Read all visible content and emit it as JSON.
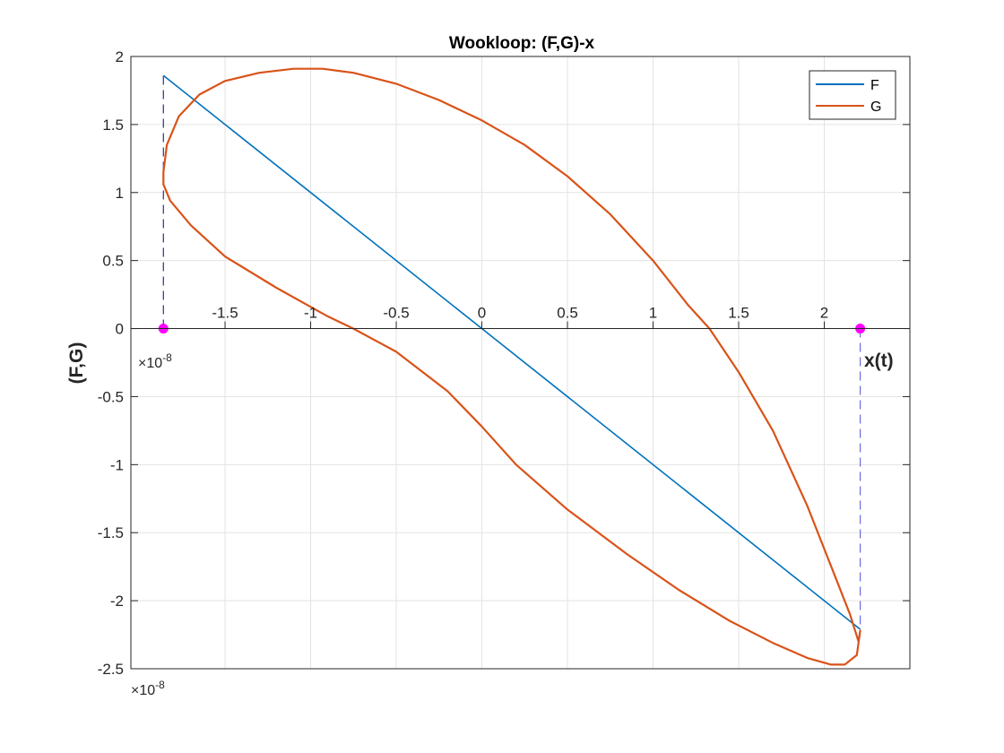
{
  "chart_data": {
    "type": "line",
    "title": "Wookloop: (F,G)-x",
    "xlabel": "x(t)",
    "ylabel": "(F,G)",
    "x_exponent_label": "×10",
    "x_exponent_power": "-8",
    "y_exponent_label": "×10",
    "y_exponent_power": "-8",
    "xlim": [
      -2.05,
      2.5
    ],
    "ylim": [
      -2.5,
      2
    ],
    "grid": true,
    "legend_position": "top-right",
    "xticks": [
      "-1.5",
      "-1",
      "-0.5",
      "0",
      "0.5",
      "1",
      "1.5",
      "2"
    ],
    "xtick_values": [
      -1.5,
      -1,
      -0.5,
      0,
      0.5,
      1,
      1.5,
      2
    ],
    "yticks": [
      "2",
      "1.5",
      "1",
      "0.5",
      "0",
      "-0.5",
      "-1",
      "-1.5",
      "-2",
      "-2.5"
    ],
    "ytick_values": [
      2,
      1.5,
      1,
      0.5,
      0,
      -0.5,
      -1,
      -1.5,
      -2,
      -2.5
    ],
    "series": [
      {
        "name": "F",
        "color": "#0072BD",
        "x": [
          -1.86,
          2.21
        ],
        "y": [
          1.86,
          -2.21
        ]
      },
      {
        "name": "G",
        "color": "#D95319",
        "closed": true,
        "x": [
          -1.86,
          -1.84,
          -1.77,
          -1.65,
          -1.5,
          -1.3,
          -1.1,
          -0.93,
          -0.75,
          -0.5,
          -0.25,
          0,
          0.25,
          0.5,
          0.75,
          1.0,
          1.2,
          1.33,
          1.5,
          1.7,
          1.9,
          2.05,
          2.15,
          2.2,
          2.21,
          2.19,
          2.12,
          2.04,
          1.9,
          1.7,
          1.45,
          1.15,
          0.85,
          0.5,
          0.2,
          0,
          -0.2,
          -0.5,
          -0.75,
          -0.9,
          -1.2,
          -1.5,
          -1.7,
          -1.82,
          -1.86
        ],
        "y": [
          1.15,
          1.35,
          1.56,
          1.72,
          1.82,
          1.88,
          1.91,
          1.91,
          1.88,
          1.8,
          1.68,
          1.53,
          1.35,
          1.12,
          0.84,
          0.5,
          0.18,
          0.0,
          -0.32,
          -0.75,
          -1.3,
          -1.78,
          -2.1,
          -2.3,
          -2.22,
          -2.4,
          -2.47,
          -2.47,
          -2.42,
          -2.31,
          -2.15,
          -1.92,
          -1.66,
          -1.33,
          -1.0,
          -0.72,
          -0.46,
          -0.17,
          0.0,
          0.09,
          0.3,
          0.53,
          0.76,
          0.94,
          1.06
        ]
      }
    ],
    "markers": [
      {
        "name": "left-root",
        "x": -1.86,
        "y": 0,
        "color": "#FF00FF"
      },
      {
        "name": "right-root",
        "x": 2.21,
        "y": 0,
        "color": "#FF00FF"
      }
    ],
    "guides": [
      {
        "name": "left-guide",
        "x": -1.86,
        "y1": 0,
        "y2": 1.86,
        "color": "#2E2E8F"
      },
      {
        "name": "right-guide",
        "x": 2.21,
        "y1": 0,
        "y2": -2.21,
        "color": "#6A6AE0"
      }
    ]
  }
}
